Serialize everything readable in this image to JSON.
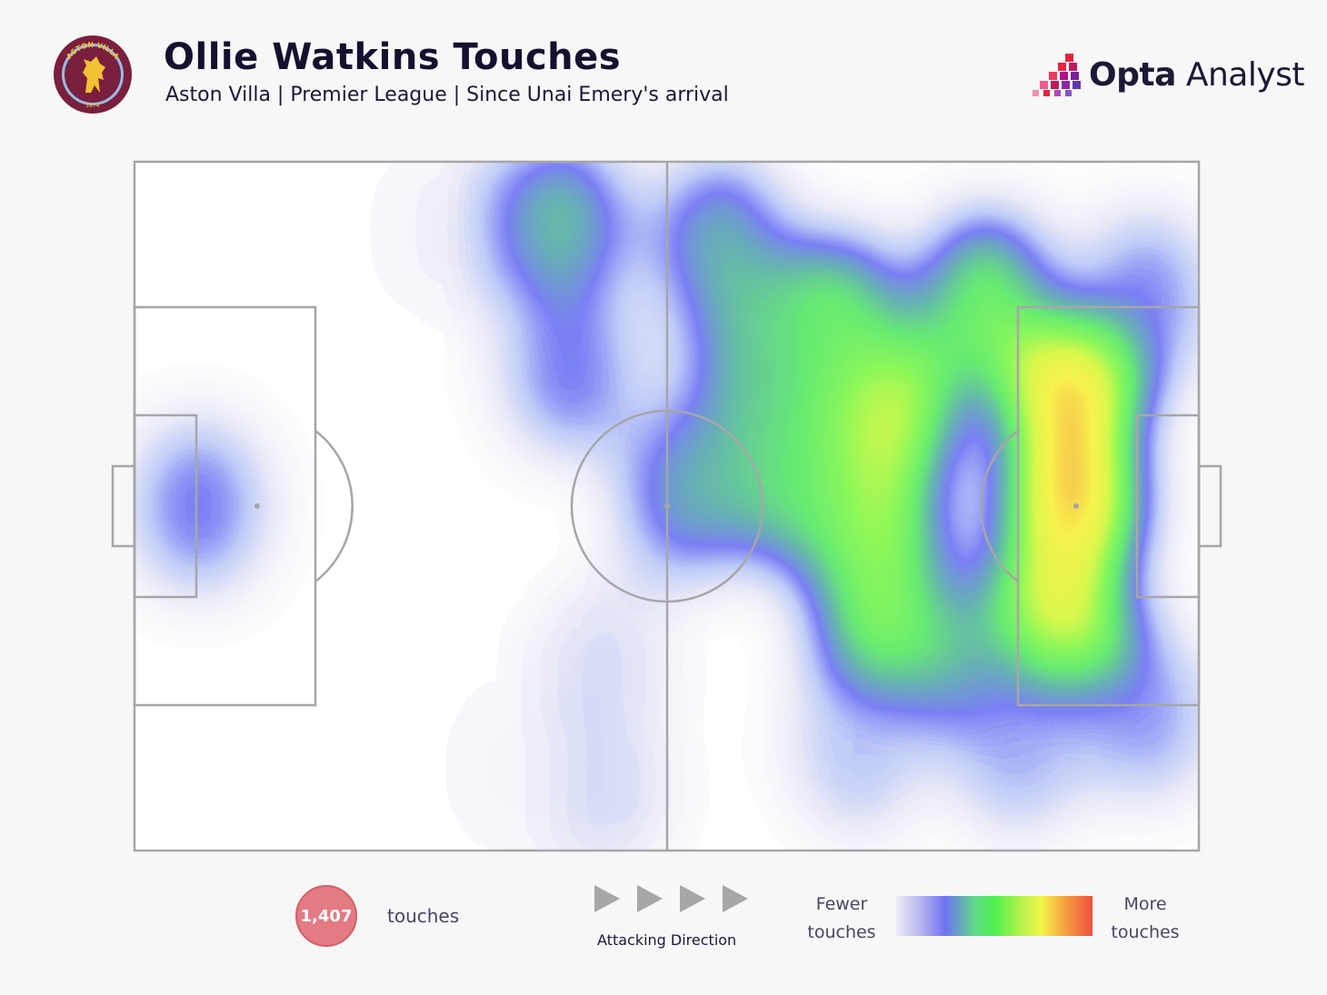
{
  "header": {
    "title": "Ollie Watkins Touches",
    "subtitle": "Aston Villa | Premier League | Since Unai Emery's arrival",
    "crest_text": "ASTON VILLA",
    "crest_year": "1874"
  },
  "brand": {
    "bold": "Opta",
    "light": " Analyst"
  },
  "chart_data": {
    "type": "heatmap",
    "title": "Ollie Watkins Touches",
    "subtitle": "Aston Villa | Premier League | Since Unai Emery's arrival",
    "x_label": "",
    "y_label": "",
    "x_range": [
      0,
      100
    ],
    "y_range": [
      0,
      100
    ],
    "total_touches": 1407,
    "direction": "left-to-right",
    "scale_labels": [
      "Fewer touches",
      "More touches"
    ],
    "hotspots": [
      {
        "x": 88,
        "y": 50,
        "intensity": 1.0
      },
      {
        "x": 88,
        "y": 36,
        "intensity": 0.9
      },
      {
        "x": 87,
        "y": 62,
        "intensity": 0.8
      },
      {
        "x": 71,
        "y": 37,
        "intensity": 0.72
      },
      {
        "x": 70,
        "y": 57,
        "intensity": 0.7
      },
      {
        "x": 70,
        "y": 66,
        "intensity": 0.6
      },
      {
        "x": 66,
        "y": 23,
        "intensity": 0.55
      },
      {
        "x": 80,
        "y": 20,
        "intensity": 0.55
      },
      {
        "x": 55,
        "y": 12,
        "intensity": 0.42
      },
      {
        "x": 62,
        "y": 47,
        "intensity": 0.5
      },
      {
        "x": 58,
        "y": 28,
        "intensity": 0.45
      },
      {
        "x": 40,
        "y": 9,
        "intensity": 0.45
      },
      {
        "x": 41,
        "y": 30,
        "intensity": 0.32
      },
      {
        "x": 52,
        "y": 48,
        "intensity": 0.4
      },
      {
        "x": 80,
        "y": 75,
        "intensity": 0.42
      },
      {
        "x": 95,
        "y": 20,
        "intensity": 0.3
      },
      {
        "x": 95,
        "y": 80,
        "intensity": 0.28
      },
      {
        "x": 83,
        "y": 85,
        "intensity": 0.25
      },
      {
        "x": 68,
        "y": 85,
        "intensity": 0.22
      },
      {
        "x": 6,
        "y": 50,
        "intensity": 0.32
      },
      {
        "x": 44,
        "y": 73,
        "intensity": 0.15
      },
      {
        "x": 44,
        "y": 91,
        "intensity": 0.17
      },
      {
        "x": 30,
        "y": 10,
        "intensity": 0.08
      },
      {
        "x": 35,
        "y": 88,
        "intensity": 0.06
      }
    ]
  },
  "legend": {
    "count": "1,407",
    "count_label": "touches",
    "direction_label": "Attacking Direction",
    "fewer": "Fewer touches",
    "more": "More touches"
  },
  "colors": {
    "pitch_line": "#a6a6a9",
    "background": "#f7f7f8",
    "badge": "#e47a82",
    "crest": "#7a1f3d",
    "crest_ring": "#95bfe5"
  }
}
